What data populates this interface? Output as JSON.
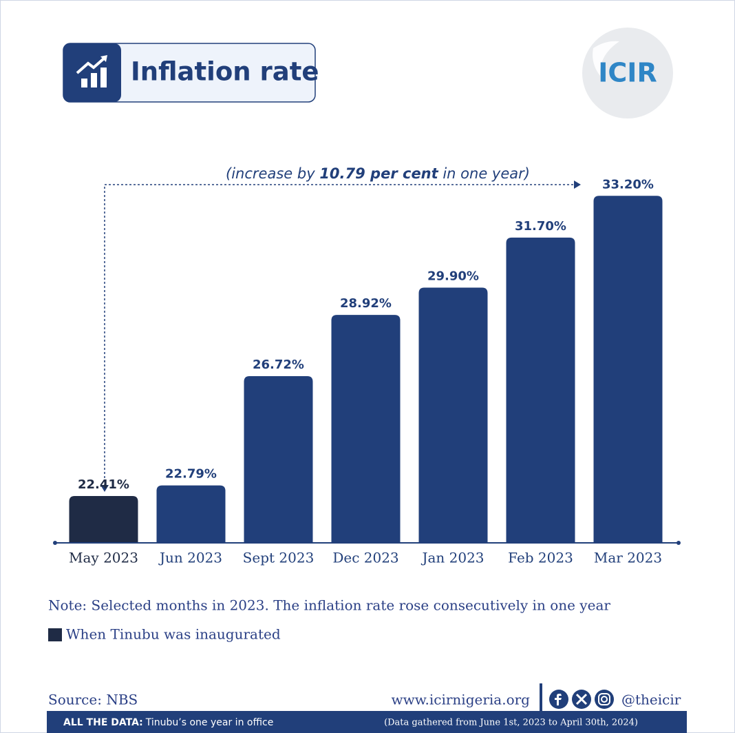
{
  "chart_data": {
    "type": "bar",
    "title": "Inflation rate",
    "annotation": {
      "prefix": "(increase by ",
      "highlight": "10.79 per cent",
      "suffix": " in one year)"
    },
    "categories": [
      "May 2023",
      "Jun 2023",
      "Sept 2023",
      "Dec 2023",
      "Jan 2023",
      "Feb 2023",
      "Mar 2023"
    ],
    "values": [
      22.41,
      22.79,
      26.72,
      28.92,
      29.9,
      31.7,
      33.2
    ],
    "value_labels": [
      "22.41%",
      "22.79%",
      "26.72%",
      "28.92%",
      "29.90%",
      "31.70%",
      "33.20%"
    ],
    "colors": [
      "#1f2b45",
      "#213f7a",
      "#213f7a",
      "#213f7a",
      "#213f7a",
      "#213f7a",
      "#213f7a"
    ],
    "ylim": [
      20.75,
      34
    ],
    "note": "Note: Selected months in 2023. The inflation rate rose consecutively in one year",
    "legend": {
      "label": "When Tinubu was inaugurated",
      "color": "#1f2b45"
    },
    "source": "Source: NBS",
    "website": "www.icirnigeria.org",
    "handle": "@theicir",
    "logo": "ICIR",
    "footer": {
      "label": "ALL THE DATA:",
      "text": "Tinubu’s one year in office",
      "period": "(Data gathered from June 1st, 2023 to April 30th, 2024)"
    }
  }
}
